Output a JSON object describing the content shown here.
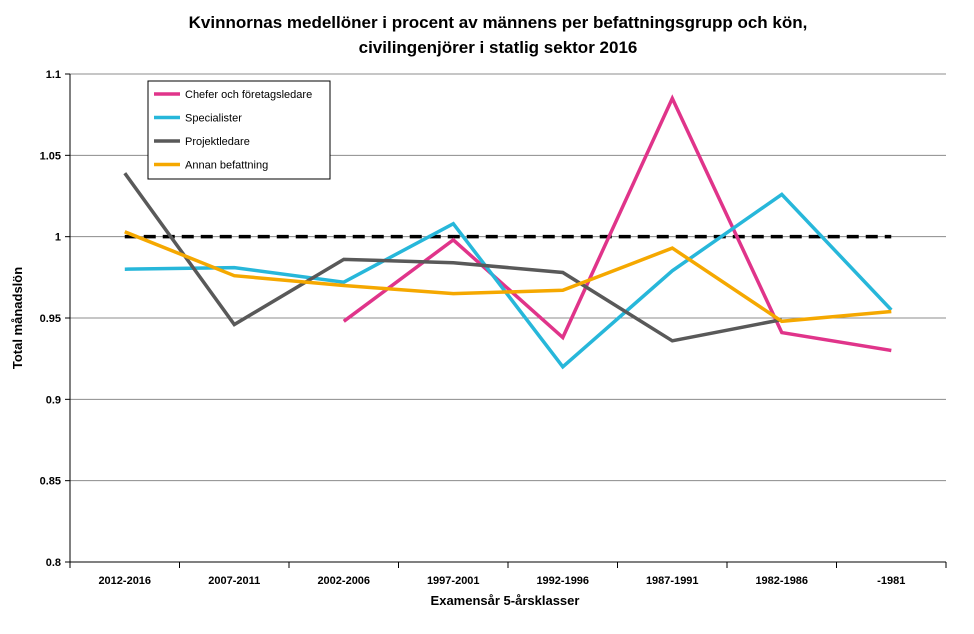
{
  "chart_data": {
    "type": "line",
    "title": "Kvinnornas medellöner i procent av männens per befattningsgrupp och kön,",
    "subtitle": "civilingenjörer i statlig sektor 2016",
    "xlabel": "Examensår 5-årsklasser",
    "ylabel": "Total månadslön",
    "categories": [
      "2012-2016",
      "2007-2011",
      "2002-2006",
      "1997-2001",
      "1992-1996",
      "1987-1991",
      "1982-1986",
      "-1981"
    ],
    "ylim": [
      0.8,
      1.1
    ],
    "yticks": [
      0.8,
      0.85,
      0.9,
      0.95,
      1,
      1.05,
      1.1
    ],
    "ytick_labels": [
      "0.8",
      "0.85",
      "0.9",
      "0.95",
      "1",
      "1.05",
      "1.1"
    ],
    "grid": true,
    "legend_position": "top-left",
    "reference_line": {
      "value": 1,
      "color": "#000000",
      "style": "dashed"
    },
    "series": [
      {
        "name": "Chefer och företagsledare",
        "color": "#e0348a",
        "values": [
          null,
          null,
          0.948,
          0.998,
          0.938,
          1.085,
          0.941,
          0.93
        ]
      },
      {
        "name": "Specialister",
        "color": "#27b7da",
        "values": [
          0.98,
          0.981,
          0.972,
          1.008,
          0.92,
          0.979,
          1.026,
          0.955
        ]
      },
      {
        "name": "Projektledare",
        "color": "#595959",
        "values": [
          1.039,
          0.946,
          0.986,
          0.984,
          0.978,
          0.936,
          0.949,
          null
        ]
      },
      {
        "name": "Annan befattning",
        "color": "#f5a800",
        "values": [
          1.003,
          0.976,
          0.97,
          0.965,
          0.967,
          0.993,
          0.948,
          0.954
        ]
      }
    ]
  }
}
